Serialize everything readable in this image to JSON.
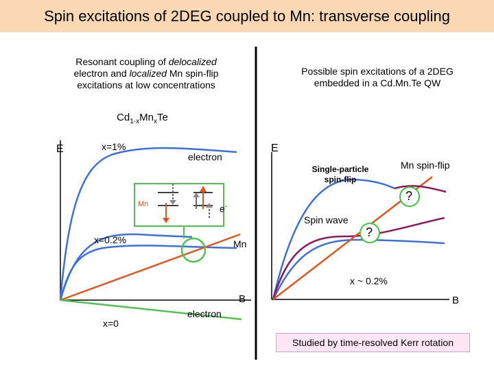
{
  "title": "Spin excitations of 2DEG coupled to Mn: transverse coupling",
  "left_panel": {
    "heading_lines": [
      [
        {
          "t": "Resonant coupling of ",
          "i": false
        },
        {
          "t": "delocalized",
          "i": true
        }
      ],
      [
        {
          "t": "electron and ",
          "i": false
        },
        {
          "t": "localized",
          "i": true
        },
        {
          "t": " Mn spin-flip",
          "i": false
        }
      ],
      [
        {
          "t": "excitations at low concentrations",
          "i": false
        }
      ]
    ],
    "formula": {
      "a": "Cd",
      "s1": "1-x",
      "b": "Mn",
      "s2": "x",
      "c": "Te"
    },
    "axis_y_label": "E",
    "axis_x_label": "B",
    "labels": {
      "x1": "x=1%",
      "x02": "x=0.2%",
      "x0": "x=0",
      "electron_top": "electron",
      "electron_bottom": "electron",
      "mn": "Mn",
      "inset_mn": "Mn",
      "inset_e": "e",
      "inset_e_sup": "-"
    }
  },
  "right_panel": {
    "heading_lines": [
      "Possible spin excitations of a 2DEG",
      "embedded in a Cd.Mn.Te QW"
    ],
    "axis_y_label": "E",
    "axis_x_label": "B",
    "labels": {
      "single_particle": [
        "Single-particle",
        "spin-flip"
      ],
      "mn_spin_flip": "Mn spin-flip",
      "spin_wave": "Spin wave",
      "x_approx": "x ~ 0.2%",
      "q1": "?",
      "q2": "?"
    },
    "note": "Studied by time-resolved Kerr rotation"
  },
  "colors": {
    "blue": "#3b6fe0",
    "orange": "#e0541e",
    "green": "#4fc34f",
    "purple": "#8b1a5a",
    "title_bg": "#fbd8b4",
    "note_bg": "#ffe6f4"
  }
}
